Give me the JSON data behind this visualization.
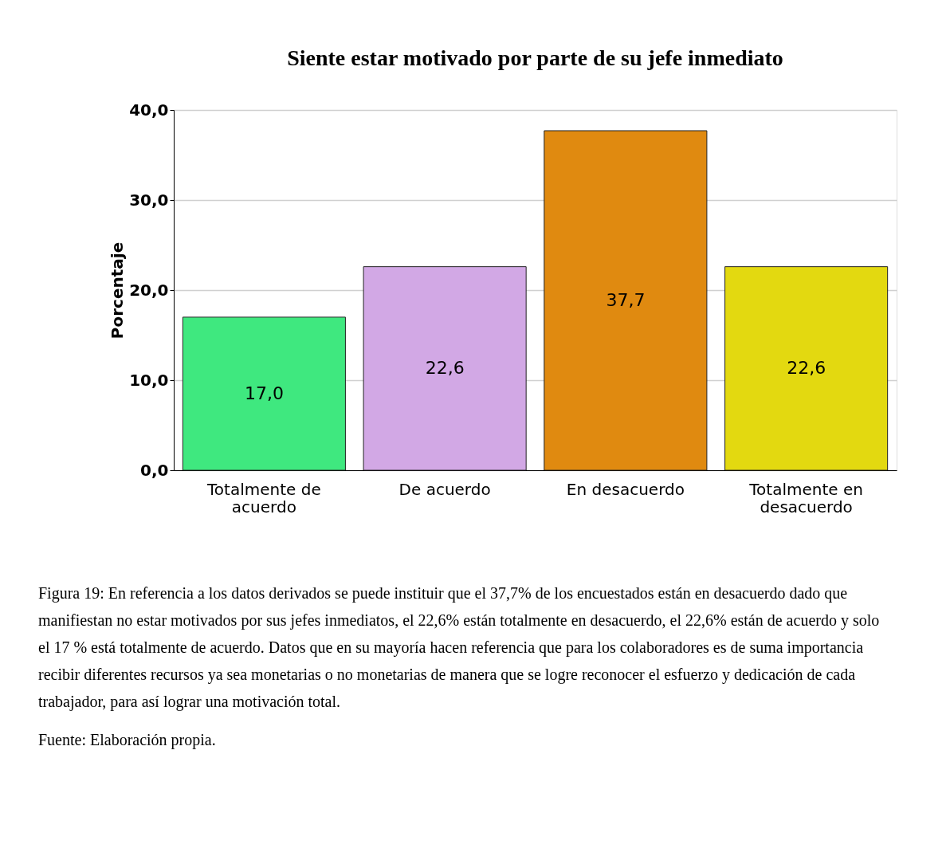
{
  "chart_data": {
    "type": "bar",
    "title": "Siente estar motivado por parte de su jefe inmediato",
    "ylabel": "Porcentaje",
    "categories": [
      "Totalmente de acuerdo",
      "De acuerdo",
      "En desacuerdo",
      "Totalmente en desacuerdo"
    ],
    "values": [
      17.0,
      22.6,
      37.7,
      22.6
    ],
    "colors": [
      "#3fe87f",
      "#d2a8e5",
      "#e08a10",
      "#e3d910"
    ],
    "value_labels": [
      "17,0",
      "22,6",
      "37,7",
      "22,6"
    ],
    "ylim": [
      0,
      40
    ],
    "yticks": [
      {
        "value": 0,
        "label": "0,0"
      },
      {
        "value": 10,
        "label": "10,0"
      },
      {
        "value": 20,
        "label": "20,0"
      },
      {
        "value": 30,
        "label": "30,0"
      },
      {
        "value": 40,
        "label": "40,0"
      }
    ],
    "grid": "y",
    "annotations": [
      "Figura 19: En referencia a los datos derivados se puede instituir que el 37,7% de los encuestados están en desacuerdo dado que manifiestan no estar motivados por sus jefes inmediatos, el 22,6% están totalmente en desacuerdo, el 22,6% están de acuerdo y solo el 17 % está totalmente de acuerdo. Datos que en su mayoría hacen referencia que para los colaboradores es de suma importancia recibir diferentes recursos ya sea monetarias o no monetarias de manera que se logre reconocer el esfuerzo y dedicación de cada trabajador, para así lograr una motivación total.",
      "Fuente: Elaboración propia."
    ]
  }
}
